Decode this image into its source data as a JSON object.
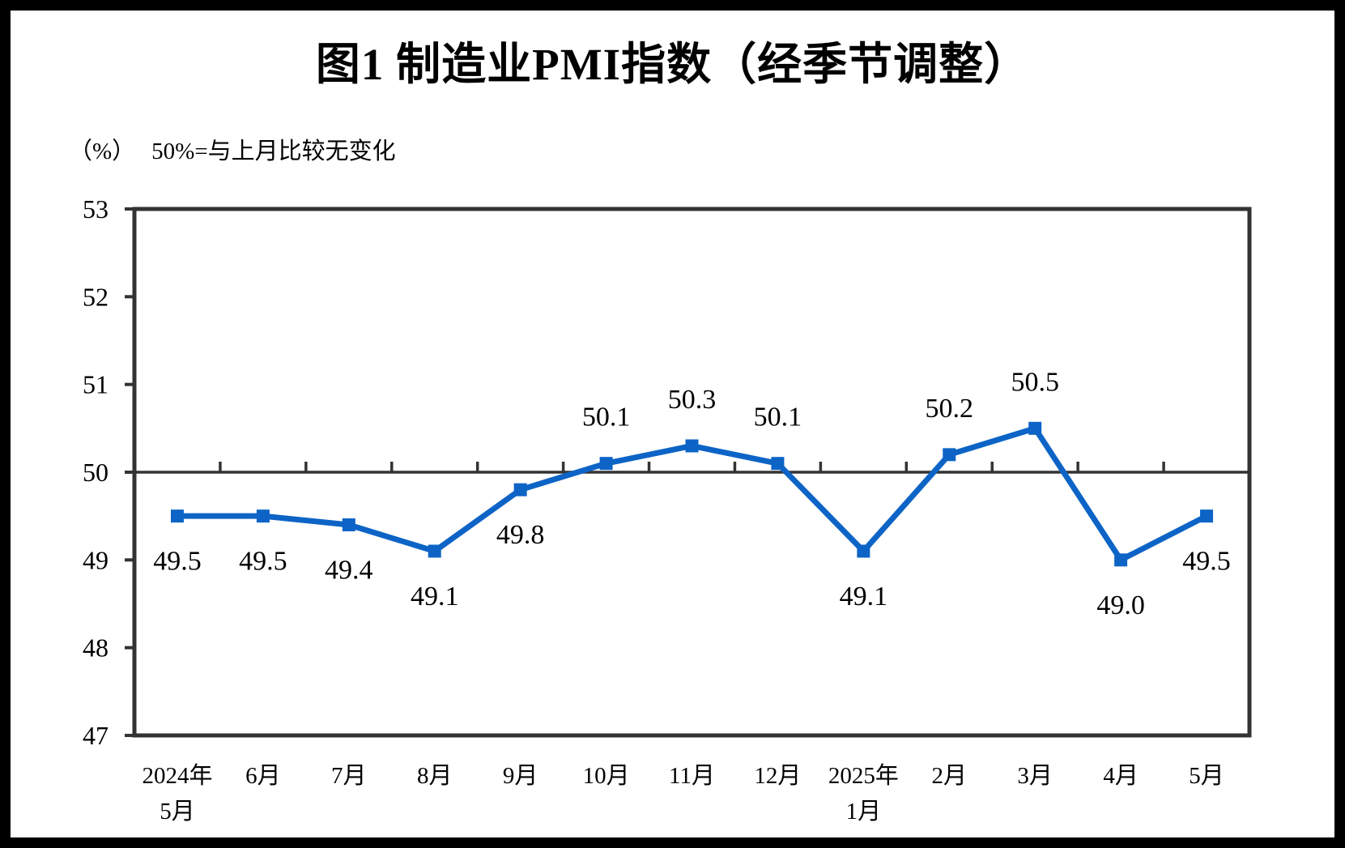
{
  "figure": {
    "title": "图1 制造业PMI指数（经季节调整）",
    "unit_label": "（%）",
    "reference_note": "50%=与上月比较无变化"
  },
  "chart_data": {
    "type": "line",
    "title": "图1 制造业PMI指数（经季节调整）",
    "unit_label": "（%）",
    "reference_note": "50%=与上月比较无变化",
    "series_name": "制造业PMI指数",
    "categories": [
      [
        "2024年",
        "5月"
      ],
      [
        "6月"
      ],
      [
        "7月"
      ],
      [
        "8月"
      ],
      [
        "9月"
      ],
      [
        "10月"
      ],
      [
        "11月"
      ],
      [
        "12月"
      ],
      [
        "2025年",
        "1月"
      ],
      [
        "2月"
      ],
      [
        "3月"
      ],
      [
        "4月"
      ],
      [
        "5月"
      ]
    ],
    "values": [
      49.5,
      49.5,
      49.4,
      49.1,
      49.8,
      50.1,
      50.3,
      50.1,
      49.1,
      50.2,
      50.5,
      49.0,
      49.5
    ],
    "data_labels": [
      "49.5",
      "49.5",
      "49.4",
      "49.1",
      "49.8",
      "50.1",
      "50.3",
      "50.1",
      "49.1",
      "50.2",
      "50.5",
      "49.0",
      "49.5"
    ],
    "ylim": [
      47,
      53
    ],
    "y_ticks": [
      53,
      52,
      51,
      50,
      49,
      48,
      47
    ],
    "reference_line": 50,
    "grid": "off",
    "legend": "none",
    "marker": "square",
    "line_color": "#0d64c6",
    "axis_color": "#333333",
    "label_color": "#000000",
    "background_color": "#ffffff"
  }
}
